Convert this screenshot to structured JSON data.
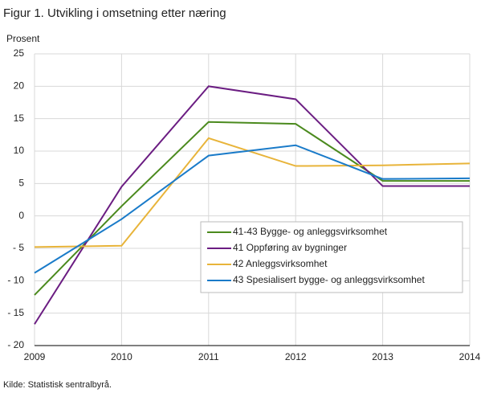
{
  "chart_data": {
    "type": "line",
    "title": "Figur 1. Utvikling i omsetning etter næring",
    "y_label": "Prosent",
    "source": "Kilde: Statistisk sentralbyrå.",
    "x": [
      2009,
      2010,
      2011,
      2012,
      2013,
      2014
    ],
    "xlim": [
      2009,
      2014
    ],
    "xticks": [
      2009,
      2010,
      2011,
      2012,
      2013,
      2014
    ],
    "ylim": [
      -20,
      25
    ],
    "yticks": [
      {
        "value": -20,
        "label": "- 20"
      },
      {
        "value": -15,
        "label": "- 15"
      },
      {
        "value": -10,
        "label": "- 10"
      },
      {
        "value": -5,
        "label": "- 5"
      },
      0,
      5,
      10,
      15,
      20,
      25
    ],
    "grid": true,
    "series": [
      {
        "name": "41-43 Bygge- og anleggsvirksomhet",
        "color": "#4b8a1e",
        "values": [
          -12.2,
          1.5,
          14.5,
          14.2,
          5.4,
          5.4
        ]
      },
      {
        "name": "41 Oppføring av bygninger",
        "color": "#6b1d82",
        "values": [
          -16.7,
          4.5,
          20,
          18,
          4.6,
          4.6
        ]
      },
      {
        "name": "42 Anleggsvirksomhet",
        "color": "#e8b43a",
        "values": [
          -4.8,
          -4.6,
          12,
          7.7,
          7.8,
          8.1
        ]
      },
      {
        "name": "43 Spesialisert bygge- og anleggsvirksomhet",
        "color": "#1a7bc9",
        "values": [
          -8.8,
          -0.5,
          9.3,
          10.9,
          5.7,
          5.8
        ]
      }
    ]
  }
}
